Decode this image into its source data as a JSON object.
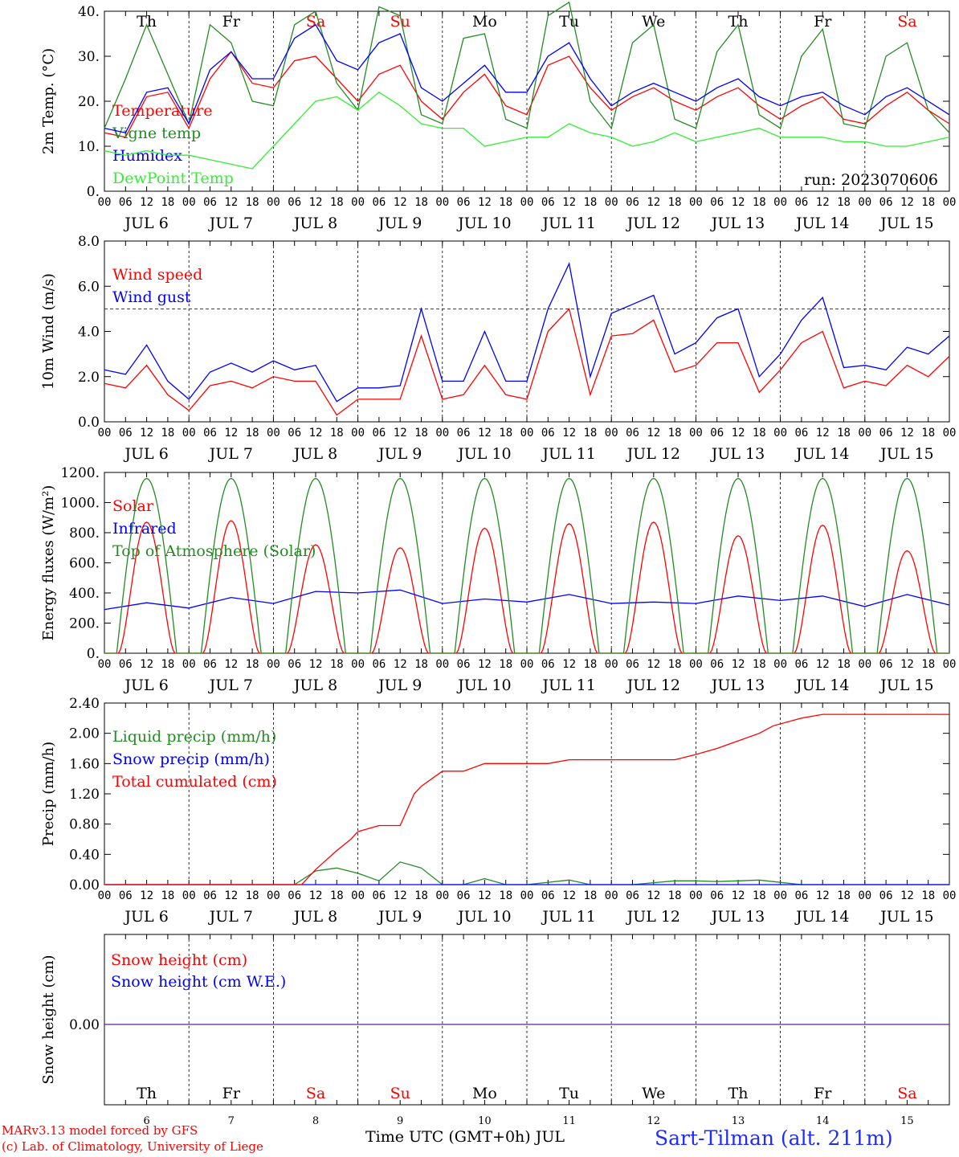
{
  "colors": {
    "red": "#ff0000",
    "green": "#228b22",
    "lightgreen": "#33ee33",
    "blue": "#0000ff",
    "purple": "#7b3fa0",
    "weekend": "#ff0000",
    "weekday": "#000000"
  },
  "days": [
    {
      "dow": "Th",
      "date": "JUL  6",
      "num": "6",
      "weekend": false
    },
    {
      "dow": "Fr",
      "date": "JUL  7",
      "num": "7",
      "weekend": false
    },
    {
      "dow": "Sa",
      "date": "JUL  8",
      "num": "8",
      "weekend": true
    },
    {
      "dow": "Su",
      "date": "JUL  9",
      "num": "9",
      "weekend": true
    },
    {
      "dow": "Mo",
      "date": "JUL 10",
      "num": "10",
      "weekend": false
    },
    {
      "dow": "Tu",
      "date": "JUL 11",
      "num": "11",
      "weekend": false
    },
    {
      "dow": "We",
      "date": "JUL 12",
      "num": "12",
      "weekend": false
    },
    {
      "dow": "Th",
      "date": "JUL 13",
      "num": "13",
      "weekend": false
    },
    {
      "dow": "Fr",
      "date": "JUL 14",
      "num": "14",
      "weekend": false
    },
    {
      "dow": "Sa",
      "date": "JUL 15",
      "num": "15",
      "weekend": true
    }
  ],
  "hour_labels": [
    "00",
    "06",
    "12",
    "18"
  ],
  "footer": {
    "credit_line1": "MARv3.13 model forced by GFS",
    "credit_line2": "(c) Lab. of Climatology, University of Liege",
    "xaxis_title": "Time UTC (GMT+0h) JUL",
    "station": "Sart-Tilman (alt. 211m)"
  },
  "chart_data": [
    {
      "type": "line",
      "ylabel": "2m Temp. (°C)",
      "ylim": [
        0,
        40
      ],
      "yticks": [
        "0.",
        "10.",
        "20.",
        "30.",
        "40."
      ],
      "run_label": "run: 2023070606",
      "x_unit": "hours since JUL 6 00 UTC",
      "series": [
        {
          "name": "Temperature",
          "color": "red",
          "x": [
            0,
            6,
            12,
            18,
            24,
            30,
            36,
            42,
            48,
            54,
            60,
            66,
            72,
            78,
            84,
            90,
            96,
            102,
            108,
            114,
            120,
            126,
            132,
            138,
            144,
            150,
            156,
            162,
            168,
            174,
            180,
            186,
            192,
            198,
            204,
            210,
            216,
            222,
            228,
            234,
            240
          ],
          "y": [
            13,
            12,
            21,
            22,
            14,
            25,
            31,
            24,
            23,
            29,
            30,
            25,
            20,
            26,
            28,
            20,
            16,
            22,
            26,
            19,
            17,
            28,
            30,
            23,
            18,
            21,
            23,
            20,
            18,
            21,
            23,
            19,
            16,
            19,
            21,
            16,
            15,
            19,
            22,
            18,
            15
          ]
        },
        {
          "name": "Vigne temp",
          "color": "green",
          "x": [
            0,
            6,
            12,
            18,
            24,
            30,
            36,
            42,
            48,
            54,
            60,
            66,
            72,
            78,
            84,
            90,
            96,
            102,
            108,
            114,
            120,
            126,
            132,
            138,
            144,
            150,
            156,
            162,
            168,
            174,
            180,
            186,
            192,
            198,
            204,
            210,
            216,
            222,
            228,
            234,
            240
          ],
          "y": [
            14,
            25,
            37,
            26,
            15,
            37,
            33,
            20,
            19,
            37,
            40,
            24,
            18,
            41,
            39,
            17,
            15,
            34,
            35,
            16,
            14,
            39,
            42,
            20,
            14,
            33,
            37,
            16,
            14,
            31,
            37,
            17,
            14,
            30,
            36,
            15,
            14,
            30,
            33,
            18,
            13
          ]
        },
        {
          "name": "Humidex",
          "color": "blue",
          "x": [
            0,
            6,
            12,
            18,
            24,
            30,
            36,
            42,
            48,
            54,
            60,
            66,
            72,
            78,
            84,
            90,
            96,
            102,
            108,
            114,
            120,
            126,
            132,
            138,
            144,
            150,
            156,
            162,
            168,
            174,
            180,
            186,
            192,
            198,
            204,
            210,
            216,
            222,
            228,
            234,
            240
          ],
          "y": [
            14,
            13,
            22,
            23,
            15,
            27,
            31,
            25,
            25,
            34,
            37,
            29,
            27,
            33,
            35,
            23,
            20,
            24,
            28,
            22,
            22,
            30,
            33,
            25,
            19,
            22,
            24,
            22,
            20,
            23,
            25,
            21,
            19,
            21,
            22,
            19,
            17,
            21,
            23,
            20,
            17
          ]
        },
        {
          "name": "DewPoint Temp",
          "color": "lightgreen",
          "x": [
            0,
            6,
            12,
            18,
            24,
            30,
            36,
            42,
            48,
            54,
            60,
            66,
            72,
            78,
            84,
            90,
            96,
            102,
            108,
            114,
            120,
            126,
            132,
            138,
            144,
            150,
            156,
            162,
            168,
            174,
            180,
            186,
            192,
            198,
            204,
            210,
            216,
            222,
            228,
            234,
            240
          ],
          "y": [
            9,
            8,
            9,
            8,
            8,
            7,
            6,
            5,
            10,
            15,
            20,
            21,
            18,
            22,
            19,
            15,
            14,
            14,
            10,
            11,
            12,
            12,
            15,
            13,
            12,
            10,
            11,
            13,
            11,
            12,
            13,
            14,
            12,
            12,
            12,
            11,
            11,
            10,
            10,
            11,
            12
          ]
        }
      ]
    },
    {
      "type": "line",
      "ylabel": "10m Wind (m/s)",
      "ylim": [
        0,
        8
      ],
      "yticks": [
        "0.0",
        "2.0",
        "4.0",
        "6.0",
        "8.0"
      ],
      "reference_line": 5.0,
      "series": [
        {
          "name": "Wind speed",
          "color": "red",
          "x": [
            0,
            6,
            12,
            18,
            24,
            30,
            36,
            42,
            48,
            54,
            60,
            66,
            72,
            78,
            84,
            90,
            96,
            102,
            108,
            114,
            120,
            126,
            132,
            138,
            144,
            150,
            156,
            162,
            168,
            174,
            180,
            186,
            192,
            198,
            204,
            210,
            216,
            222,
            228,
            234,
            240
          ],
          "y": [
            1.7,
            1.5,
            2.5,
            1.2,
            0.5,
            1.6,
            1.8,
            1.5,
            2.0,
            1.8,
            1.8,
            0.3,
            1.0,
            1.0,
            1.0,
            3.8,
            1.0,
            1.2,
            2.5,
            1.2,
            1.0,
            4.0,
            5.0,
            1.2,
            3.8,
            3.9,
            4.5,
            2.2,
            2.5,
            3.5,
            3.5,
            1.3,
            2.3,
            3.5,
            4.0,
            1.5,
            1.8,
            1.6,
            2.5,
            2.0,
            2.9
          ]
        },
        {
          "name": "Wind gust",
          "color": "blue",
          "x": [
            0,
            6,
            12,
            18,
            24,
            30,
            36,
            42,
            48,
            54,
            60,
            66,
            72,
            78,
            84,
            90,
            96,
            102,
            108,
            114,
            120,
            126,
            132,
            138,
            144,
            150,
            156,
            162,
            168,
            174,
            180,
            186,
            192,
            198,
            204,
            210,
            216,
            222,
            228,
            234,
            240
          ],
          "y": [
            2.3,
            2.1,
            3.4,
            1.8,
            1.0,
            2.2,
            2.6,
            2.2,
            2.7,
            2.3,
            2.5,
            0.9,
            1.5,
            1.5,
            1.6,
            5.0,
            1.8,
            1.8,
            4.0,
            1.8,
            1.8,
            5.0,
            7.0,
            2.0,
            4.8,
            5.2,
            5.6,
            3.0,
            3.5,
            4.6,
            5.0,
            2.0,
            3.0,
            4.5,
            5.5,
            2.4,
            2.5,
            2.3,
            3.3,
            3.0,
            3.8
          ]
        }
      ]
    },
    {
      "type": "line",
      "ylabel": "Energy fluxes (W/m²)",
      "ylim": [
        0,
        1200
      ],
      "yticks": [
        "0.",
        "200.",
        "400.",
        "600.",
        "800.",
        "1000.",
        "1200."
      ],
      "series": [
        {
          "name": "Solar",
          "color": "red",
          "peaks": [
            870,
            880,
            720,
            700,
            830,
            860,
            870,
            780,
            850,
            680
          ]
        },
        {
          "name": "Infrared",
          "color": "blue",
          "x": [
            0,
            12,
            24,
            36,
            48,
            60,
            72,
            84,
            96,
            108,
            120,
            132,
            144,
            156,
            168,
            180,
            192,
            204,
            216,
            228,
            240
          ],
          "y": [
            290,
            335,
            300,
            370,
            330,
            410,
            400,
            420,
            330,
            360,
            340,
            390,
            330,
            340,
            330,
            380,
            350,
            380,
            310,
            390,
            320
          ]
        },
        {
          "name": "Top of Atmosphere (Solar)",
          "color": "green",
          "peak": 1160
        }
      ]
    },
    {
      "type": "line",
      "ylabel": "Precip (mm/h)",
      "ylim": [
        0,
        2.4
      ],
      "yticks": [
        "0.00",
        "0.40",
        "0.80",
        "1.20",
        "1.60",
        "2.00",
        "2.40"
      ],
      "series": [
        {
          "name": "Liquid precip (mm/h)",
          "color": "green",
          "x": [
            0,
            54,
            60,
            66,
            72,
            78,
            84,
            90,
            96,
            102,
            108,
            114,
            120,
            132,
            138,
            150,
            162,
            168,
            174,
            180,
            186,
            192,
            198,
            240
          ],
          "y": [
            0,
            0,
            0.18,
            0.22,
            0.15,
            0.05,
            0.3,
            0.22,
            0,
            0,
            0.08,
            0,
            0,
            0.06,
            0,
            0,
            0.05,
            0.05,
            0.04,
            0.05,
            0.06,
            0.03,
            0,
            0
          ]
        },
        {
          "name": "Snow precip (mm/h)",
          "color": "blue",
          "x": [
            0,
            240
          ],
          "y": [
            0,
            0
          ]
        },
        {
          "name": "Total cumulated (cm)",
          "color": "red",
          "x": [
            0,
            56,
            60,
            66,
            70,
            72,
            78,
            84,
            88,
            90,
            96,
            102,
            108,
            114,
            120,
            126,
            132,
            138,
            144,
            150,
            156,
            162,
            168,
            174,
            180,
            186,
            190,
            198,
            204,
            240
          ],
          "y": [
            0,
            0,
            0.2,
            0.45,
            0.6,
            0.7,
            0.78,
            0.78,
            1.2,
            1.3,
            1.5,
            1.5,
            1.6,
            1.6,
            1.6,
            1.6,
            1.65,
            1.65,
            1.65,
            1.65,
            1.65,
            1.65,
            1.72,
            1.8,
            1.9,
            2.0,
            2.1,
            2.2,
            2.25,
            2.25
          ]
        }
      ]
    },
    {
      "type": "line",
      "ylabel": "Snow height (cm)",
      "yticks": [
        "0.00"
      ],
      "series": [
        {
          "name": "Snow height (cm)",
          "color": "red",
          "x": [
            0,
            240
          ],
          "y": [
            0,
            0
          ]
        },
        {
          "name": "Snow height (cm W.E.)",
          "color": "blue",
          "x": [
            0,
            240
          ],
          "y": [
            0,
            0
          ]
        }
      ]
    }
  ]
}
